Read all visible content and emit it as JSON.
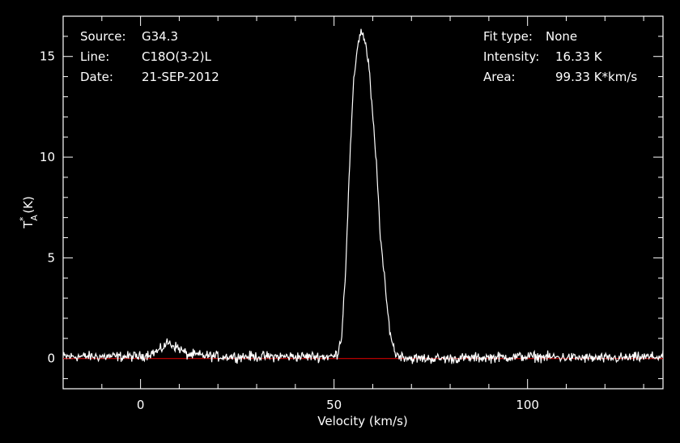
{
  "info": {
    "source_label": "Source:",
    "source_value": "G34.3",
    "line_label": "Line:",
    "line_value": "C18O(3-2)L",
    "date_label": "Date:",
    "date_value": "21-SEP-2012",
    "fit_label": "Fit type:",
    "fit_value": "None",
    "intensity_label": "Intensity:",
    "intensity_value": "16.33 K",
    "area_label": "Area:",
    "area_value": "99.33 K*km/s"
  },
  "colors": {
    "background": "#000000",
    "axes": "#ffffff",
    "spectrum": "#ffffff",
    "baseline": "#cc0000"
  },
  "chart_data": {
    "type": "line",
    "xlabel": "Velocity (km/s)",
    "ylabel": "T_A* (K)",
    "ylabel_main": "T",
    "ylabel_sup": "*",
    "ylabel_sub": "A",
    "ylabel_unit": "(K)",
    "xlim": [
      -20,
      135
    ],
    "ylim": [
      -1.5,
      17
    ],
    "xticks": [
      0,
      50,
      100
    ],
    "yticks": [
      0,
      5,
      10,
      15
    ],
    "xtick_labels": [
      "0",
      "50",
      "100"
    ],
    "ytick_labels": [
      "0",
      "5",
      "10",
      "15"
    ],
    "baseline_y": 0,
    "series": [
      {
        "x": [
          -20,
          0,
          5,
          7,
          10,
          12,
          20,
          40,
          50,
          51,
          52,
          53,
          54,
          55,
          56,
          57,
          58,
          59,
          60,
          61,
          62,
          63,
          64,
          65,
          66,
          70,
          80,
          100,
          120,
          135
        ],
        "y": [
          0.1,
          0.1,
          0.4,
          0.8,
          0.5,
          0.2,
          0.1,
          0.1,
          0.1,
          0.3,
          1.2,
          4.5,
          9.5,
          13.5,
          15.5,
          16.3,
          15.8,
          14.5,
          12.0,
          9.5,
          6.0,
          4.0,
          2.0,
          0.8,
          0.2,
          0.0,
          0.0,
          0.1,
          0.0,
          0.1
        ]
      }
    ]
  }
}
